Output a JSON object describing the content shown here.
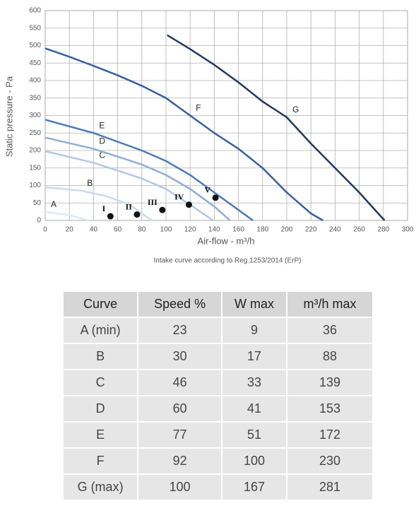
{
  "chart_data": {
    "type": "line",
    "x_label": "Air-flow - m³/h",
    "y_label": "Static pressure - Pa",
    "caption": "Intake curve according to Reg.1253/2014 (ErP)",
    "xlim": [
      0,
      300
    ],
    "xticks": [
      0,
      20,
      40,
      60,
      80,
      100,
      120,
      140,
      160,
      180,
      200,
      220,
      240,
      260,
      280,
      300
    ],
    "ylim": [
      0,
      600
    ],
    "yticks": [
      0,
      50,
      100,
      150,
      200,
      250,
      300,
      350,
      400,
      450,
      500,
      550,
      600
    ],
    "grid": true,
    "series": [
      {
        "name": "A",
        "color": "#dfe8f4",
        "x": [
          0,
          20,
          36
        ],
        "values": [
          25,
          15,
          0
        ]
      },
      {
        "name": "B",
        "color": "#ccdaee",
        "x": [
          0,
          30,
          50,
          70,
          88
        ],
        "values": [
          95,
          85,
          70,
          45,
          0
        ]
      },
      {
        "name": "C",
        "color": "#b2c8e6",
        "x": [
          0,
          40,
          80,
          100,
          120,
          139
        ],
        "values": [
          198,
          165,
          120,
          90,
          45,
          0
        ]
      },
      {
        "name": "D",
        "color": "#8eaed8",
        "x": [
          0,
          40,
          80,
          100,
          120,
          140,
          153
        ],
        "values": [
          237,
          205,
          160,
          130,
          90,
          40,
          0
        ]
      },
      {
        "name": "E",
        "color": "#4a7bbb",
        "x": [
          0,
          40,
          80,
          100,
          120,
          140,
          160,
          172
        ],
        "values": [
          288,
          250,
          200,
          170,
          130,
          80,
          30,
          0
        ]
      },
      {
        "name": "F",
        "color": "#34619f",
        "x": [
          0,
          20,
          40,
          60,
          80,
          100,
          110,
          120,
          140,
          160,
          180,
          200,
          220,
          230
        ],
        "values": [
          492,
          468,
          442,
          415,
          385,
          350,
          325,
          300,
          250,
          205,
          150,
          80,
          20,
          0
        ]
      },
      {
        "name": "G",
        "color": "#1f3a60",
        "x": [
          101,
          120,
          140,
          160,
          180,
          200,
          220,
          240,
          260,
          281
        ],
        "values": [
          530,
          490,
          445,
          395,
          340,
          295,
          220,
          150,
          80,
          0
        ]
      }
    ],
    "points": {
      "labels": [
        "I",
        "II",
        "III",
        "IV",
        "V"
      ],
      "x": [
        54,
        76,
        97,
        119,
        141
      ],
      "values": [
        12,
        17,
        30,
        45,
        65
      ]
    }
  },
  "table": {
    "header": [
      "Curve",
      "Speed  %",
      "W max",
      "m³/h max"
    ],
    "rows": [
      [
        "A (min)",
        23,
        9,
        36
      ],
      [
        "B",
        30,
        17,
        88
      ],
      [
        "C",
        46,
        33,
        139
      ],
      [
        "D",
        60,
        41,
        153
      ],
      [
        "E",
        77,
        51,
        172
      ],
      [
        "F",
        92,
        100,
        230
      ],
      [
        "G (max)",
        100,
        167,
        281
      ]
    ]
  }
}
